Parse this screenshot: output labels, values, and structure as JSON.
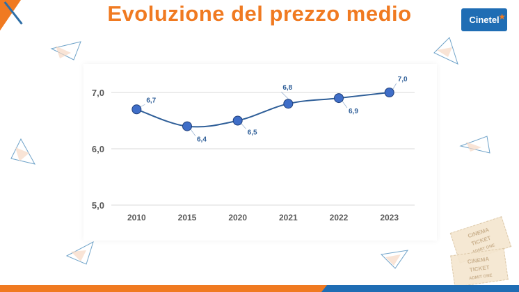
{
  "slide": {
    "title": "Evoluzione del prezzo medio",
    "logo_text": "Cinetel",
    "tickets": [
      {
        "line1": "CINEMA",
        "line2": "TICKET",
        "line3": "ADMIT ONE"
      },
      {
        "line1": "CINEMA",
        "line2": "TICKET",
        "line3": "ADMIT ONE"
      }
    ]
  },
  "colors": {
    "accent_orange": "#f07a21",
    "brand_blue": "#1f6db4",
    "series_line": "#2e5e98",
    "marker_fill": "#3f6ec8",
    "label_color": "#2e5e98"
  },
  "chart_data": {
    "type": "line",
    "title": "",
    "xlabel": "",
    "ylabel": "",
    "categories": [
      "2010",
      "2015",
      "2020",
      "2021",
      "2022",
      "2023"
    ],
    "values": [
      6.7,
      6.4,
      6.5,
      6.8,
      6.9,
      7.0
    ],
    "data_labels": [
      "6,7",
      "6,4",
      "6,5",
      "6,8",
      "6,9",
      "7,0"
    ],
    "yticks": [
      5.0,
      6.0,
      7.0
    ],
    "ytick_labels": [
      "5,0",
      "6,0",
      "7,0"
    ],
    "ylim": [
      5.0,
      7.0
    ],
    "grid": true,
    "legend": "none",
    "smooth": true
  }
}
